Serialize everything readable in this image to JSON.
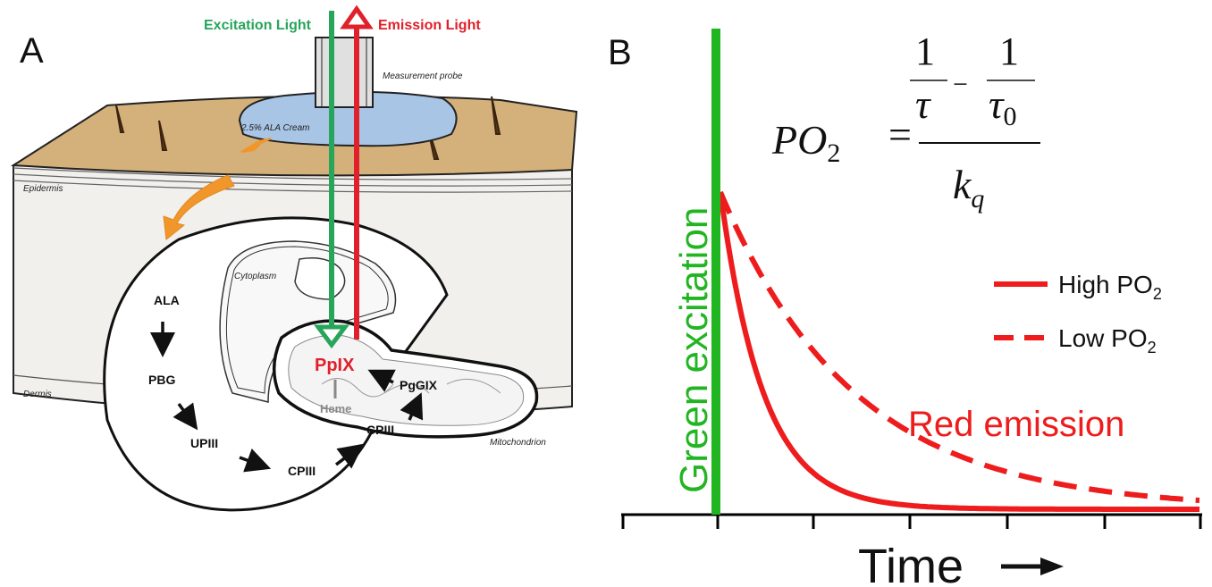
{
  "panel_a": {
    "letter": "A",
    "excitation_label": "Excitation Light",
    "emission_label": "Emission Light",
    "probe_label": "Measurement probe",
    "cream_label": "2.5% ALA Cream",
    "epidermis_label": "Epidermis",
    "dermis_label": "Dermis",
    "cytoplasm_label": "Cytoplasm",
    "mitochondrion_label": "Mitochondrion",
    "pathway": {
      "ala": "ALA",
      "pbg": "PBG",
      "upiii": "UPIII",
      "cpiii_cyto": "CPIII",
      "cpiii_mito": "CPIII",
      "pggix": "PgGIX",
      "ppix": "PpIX",
      "heme": "Heme"
    },
    "colors": {
      "excitation": "#27a55a",
      "emission": "#e0202a",
      "skin": "#d4b07a",
      "cream": "#a9c5e6",
      "orange_arrow": "#f0962a"
    }
  },
  "panel_b": {
    "letter": "B",
    "equation": {
      "lhs": "PO",
      "lhs_sub": "2",
      "equals": "=",
      "one_a": "1",
      "tau": "τ",
      "minus": "−",
      "one_b": "1",
      "tau0": "τ",
      "tau0_sub": "0",
      "kq": "k",
      "kq_sub": "q"
    },
    "excitation_label": "Green excitation",
    "emission_label": "Red emission",
    "xlabel": "Time",
    "legend": [
      {
        "name": "High PO",
        "sub": "2",
        "style": "solid"
      },
      {
        "name": "Low PO",
        "sub": "2",
        "style": "dashed"
      }
    ],
    "colors": {
      "green": "#22b522",
      "red": "#ee1c1c",
      "axis": "#000000"
    }
  }
}
